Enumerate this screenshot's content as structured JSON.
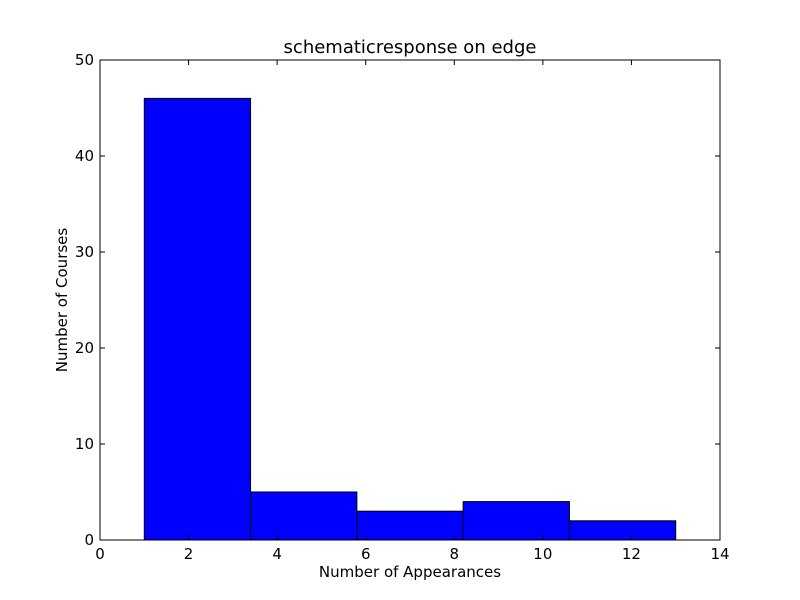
{
  "chart_data": {
    "type": "bar",
    "title": "schematicresponse on edge",
    "xlabel": "Number of Appearances",
    "ylabel": "Number of Courses",
    "xlim": [
      0,
      14
    ],
    "ylim": [
      0,
      50
    ],
    "x_ticks": [
      0,
      2,
      4,
      6,
      8,
      10,
      12,
      14
    ],
    "y_ticks": [
      0,
      10,
      20,
      30,
      40,
      50
    ],
    "bins": [
      {
        "x0": 1.0,
        "x1": 3.4,
        "value": 46
      },
      {
        "x0": 3.4,
        "x1": 5.8,
        "value": 5
      },
      {
        "x0": 5.8,
        "x1": 8.2,
        "value": 3
      },
      {
        "x0": 8.2,
        "x1": 10.6,
        "value": 4
      },
      {
        "x0": 10.6,
        "x1": 13.0,
        "value": 2
      }
    ],
    "bar_color": "#0000ff",
    "grid": false,
    "legend": "none"
  }
}
